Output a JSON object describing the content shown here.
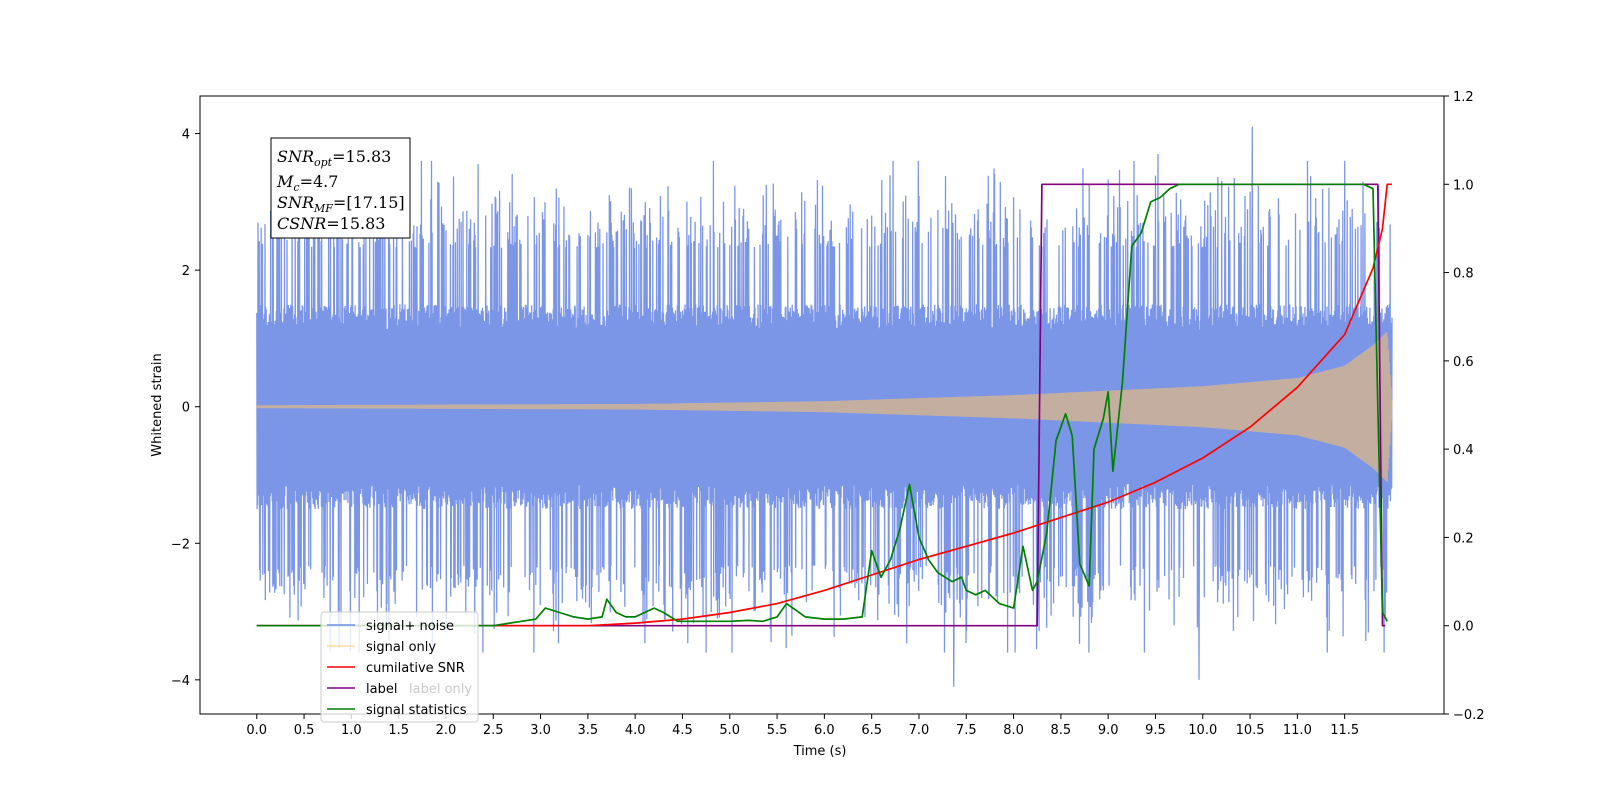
{
  "chart_data": {
    "type": "line",
    "title": "",
    "xlabel": "Time (s)",
    "ylabel": "Whitened strain",
    "xlim": [
      -0.6,
      12.55
    ],
    "ylim": [
      -4.5,
      4.55
    ],
    "y2lim": [
      -0.2,
      1.2
    ],
    "x_ticks": [
      "0.0",
      "0.5",
      "1.0",
      "1.5",
      "2.0",
      "2.5",
      "3.0",
      "3.5",
      "4.0",
      "4.5",
      "5.0",
      "5.5",
      "6.0",
      "6.5",
      "7.0",
      "7.5",
      "8.0",
      "8.5",
      "9.0",
      "9.5",
      "10.0",
      "10.5",
      "11.0",
      "11.5"
    ],
    "y_ticks": [
      -4,
      -2,
      0,
      2,
      4
    ],
    "y_tick_labels": [
      "−4",
      "−2",
      "0",
      "2",
      "4"
    ],
    "y2_ticks": [
      -0.2,
      0.0,
      0.2,
      0.4,
      0.6,
      0.8,
      1.0,
      1.2
    ],
    "y2_tick_labels": [
      "−0.2",
      "0.0",
      "0.2",
      "0.4",
      "0.6",
      "0.8",
      "1.0",
      "1.2"
    ],
    "grid": false,
    "legend_position": "lower-left",
    "annotation": {
      "snr_opt": "15.83",
      "mc": "4.7",
      "snr_mf": "[17.15]",
      "csnr": "15.83"
    },
    "series": [
      {
        "name": "signal+ noise",
        "color": "#7590e6",
        "axis": "left",
        "style": "noise-band",
        "x_range": [
          0.0,
          12.0
        ],
        "core_amplitude": 1.5,
        "peak_amplitude": 3.6,
        "outlier_peaks": [
          4.1,
          -4.1,
          3.7,
          -4.0,
          3.55
        ]
      },
      {
        "name": "signal only",
        "color": "#ffc266",
        "axis": "left",
        "style": "chirp",
        "x_range": [
          0.0,
          12.0
        ],
        "amplitude": [
          [
            0.0,
            0.02
          ],
          [
            4.0,
            0.04
          ],
          [
            6.0,
            0.08
          ],
          [
            8.0,
            0.17
          ],
          [
            10.0,
            0.3
          ],
          [
            11.0,
            0.42
          ],
          [
            11.5,
            0.6
          ],
          [
            11.8,
            0.9
          ],
          [
            11.95,
            1.1
          ],
          [
            12.0,
            0.1
          ]
        ]
      },
      {
        "name": "cumilative SNR",
        "color": "#ff0000",
        "axis": "right",
        "x": [
          0.0,
          3.5,
          4.0,
          4.5,
          5.0,
          5.5,
          6.0,
          6.5,
          7.0,
          7.5,
          8.0,
          8.5,
          9.0,
          9.5,
          10.0,
          10.5,
          11.0,
          11.5,
          11.8,
          11.9,
          11.95,
          12.0
        ],
        "y": [
          0.0,
          0.0,
          0.006,
          0.015,
          0.03,
          0.05,
          0.08,
          0.115,
          0.15,
          0.18,
          0.21,
          0.245,
          0.28,
          0.325,
          0.38,
          0.45,
          0.54,
          0.66,
          0.81,
          0.9,
          1.0,
          1.0
        ]
      },
      {
        "name": "label",
        "color": "#800080",
        "axis": "right",
        "x": [
          0.0,
          8.25,
          8.3,
          11.85,
          11.9,
          11.93
        ],
        "y": [
          0.0,
          0.0,
          1.0,
          1.0,
          0.0,
          0.0
        ]
      },
      {
        "name": "label only",
        "color": "#800080",
        "axis": "right",
        "style": "hidden",
        "x": [],
        "y": []
      },
      {
        "name": "signal statistics",
        "color": "#008000",
        "axis": "right",
        "x": [
          0.0,
          2.5,
          2.8,
          2.95,
          3.05,
          3.2,
          3.35,
          3.5,
          3.65,
          3.7,
          3.8,
          3.9,
          4.0,
          4.2,
          4.3,
          4.45,
          4.6,
          4.8,
          5.0,
          5.2,
          5.35,
          5.5,
          5.6,
          5.8,
          6.0,
          6.2,
          6.4,
          6.5,
          6.6,
          6.7,
          6.8,
          6.9,
          7.0,
          7.1,
          7.2,
          7.35,
          7.45,
          7.5,
          7.6,
          7.7,
          7.85,
          8.0,
          8.05,
          8.1,
          8.2,
          8.25,
          8.35,
          8.45,
          8.5,
          8.55,
          8.62,
          8.7,
          8.8,
          8.85,
          8.95,
          9.0,
          9.05,
          9.15,
          9.25,
          9.35,
          9.45,
          9.55,
          9.65,
          9.75,
          9.85,
          10.0,
          10.5,
          11.0,
          11.5,
          11.7,
          11.8,
          11.85,
          11.9,
          11.95
        ],
        "y": [
          0.0,
          0.0,
          0.01,
          0.015,
          0.04,
          0.03,
          0.02,
          0.015,
          0.02,
          0.06,
          0.03,
          0.02,
          0.02,
          0.04,
          0.03,
          0.01,
          0.01,
          0.01,
          0.01,
          0.012,
          0.01,
          0.02,
          0.05,
          0.02,
          0.015,
          0.015,
          0.02,
          0.17,
          0.11,
          0.15,
          0.22,
          0.32,
          0.2,
          0.15,
          0.12,
          0.1,
          0.11,
          0.08,
          0.07,
          0.08,
          0.05,
          0.04,
          0.11,
          0.18,
          0.08,
          0.1,
          0.21,
          0.42,
          0.45,
          0.48,
          0.43,
          0.14,
          0.09,
          0.4,
          0.47,
          0.53,
          0.35,
          0.55,
          0.86,
          0.89,
          0.96,
          0.97,
          0.99,
          1.0,
          1.0,
          1.0,
          1.0,
          1.0,
          1.0,
          1.0,
          0.99,
          0.5,
          0.03,
          0.01
        ]
      }
    ]
  }
}
